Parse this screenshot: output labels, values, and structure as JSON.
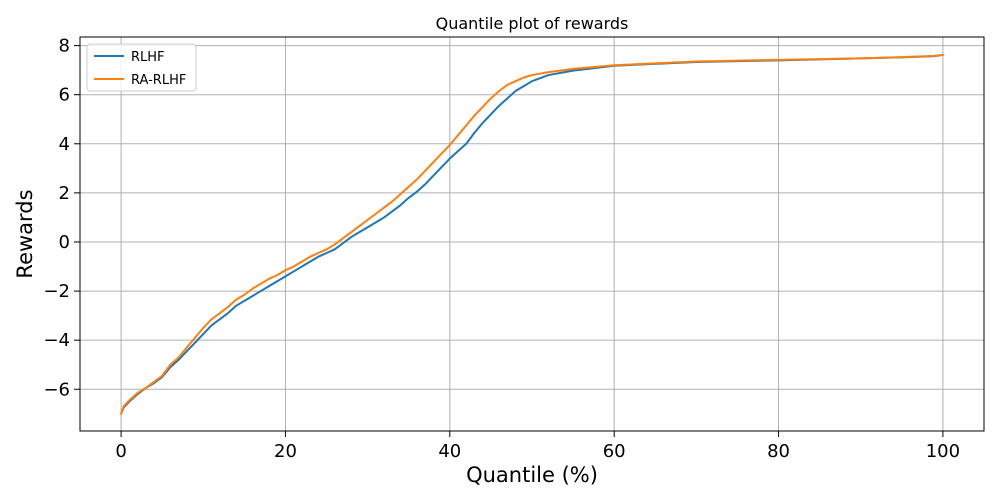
{
  "chart_data": {
    "type": "line",
    "title": "Quantile plot of rewards",
    "xlabel": "Quantile (%)",
    "ylabel": "Rewards",
    "xlim": [
      -5,
      105
    ],
    "ylim": [
      -7.7,
      8.35
    ],
    "xticks": [
      0,
      20,
      40,
      60,
      80,
      100
    ],
    "xtick_labels": [
      "0",
      "20",
      "40",
      "60",
      "80",
      "100"
    ],
    "yticks": [
      -6,
      -4,
      -2,
      0,
      2,
      4,
      6,
      8
    ],
    "ytick_labels": [
      "−6",
      "−4",
      "−2",
      "0",
      "2",
      "4",
      "6",
      "8"
    ],
    "grid": true,
    "legend_position": "top-left",
    "series": [
      {
        "name": "RLHF",
        "color": "#1f77b4",
        "x": [
          0,
          0.3,
          1,
          2,
          3,
          4,
          5,
          6,
          7,
          8,
          9,
          10,
          11,
          12,
          13,
          14,
          15,
          16,
          17,
          18,
          19,
          20,
          21,
          22,
          23,
          24,
          25,
          26,
          27,
          28,
          29,
          30,
          31,
          32,
          33,
          34,
          35,
          36,
          37,
          38,
          39,
          40,
          41,
          42,
          43,
          44,
          45,
          46,
          47,
          48,
          49,
          50,
          52,
          55,
          60,
          70,
          80,
          90,
          95,
          99,
          100
        ],
        "y": [
          -7.0,
          -6.75,
          -6.5,
          -6.2,
          -5.95,
          -5.75,
          -5.5,
          -5.1,
          -4.8,
          -4.45,
          -4.1,
          -3.75,
          -3.4,
          -3.15,
          -2.9,
          -2.6,
          -2.4,
          -2.2,
          -2.0,
          -1.8,
          -1.6,
          -1.4,
          -1.2,
          -1.0,
          -0.8,
          -0.6,
          -0.45,
          -0.3,
          -0.05,
          0.2,
          0.4,
          0.6,
          0.8,
          1.0,
          1.25,
          1.5,
          1.8,
          2.05,
          2.35,
          2.7,
          3.05,
          3.4,
          3.7,
          4.0,
          4.45,
          4.85,
          5.2,
          5.55,
          5.85,
          6.15,
          6.35,
          6.55,
          6.8,
          6.98,
          7.18,
          7.33,
          7.4,
          7.48,
          7.52,
          7.57,
          7.62
        ]
      },
      {
        "name": "RA-RLHF",
        "color": "#ff7f0e",
        "x": [
          0,
          0.3,
          1,
          2,
          3,
          4,
          5,
          6,
          7,
          8,
          9,
          10,
          11,
          12,
          13,
          14,
          15,
          16,
          17,
          18,
          19,
          20,
          21,
          22,
          23,
          24,
          25,
          26,
          27,
          28,
          29,
          30,
          31,
          32,
          33,
          34,
          35,
          36,
          37,
          38,
          39,
          40,
          41,
          42,
          43,
          44,
          45,
          46,
          47,
          48,
          49,
          50,
          52,
          55,
          60,
          70,
          80,
          90,
          95,
          99,
          100
        ],
        "y": [
          -7.0,
          -6.7,
          -6.45,
          -6.15,
          -5.95,
          -5.7,
          -5.45,
          -5.0,
          -4.7,
          -4.3,
          -3.9,
          -3.5,
          -3.15,
          -2.9,
          -2.65,
          -2.35,
          -2.15,
          -1.9,
          -1.7,
          -1.5,
          -1.35,
          -1.15,
          -1.0,
          -0.8,
          -0.6,
          -0.45,
          -0.3,
          -0.1,
          0.15,
          0.4,
          0.65,
          0.9,
          1.15,
          1.4,
          1.65,
          1.95,
          2.25,
          2.55,
          2.9,
          3.25,
          3.6,
          3.95,
          4.35,
          4.75,
          5.15,
          5.5,
          5.85,
          6.15,
          6.4,
          6.55,
          6.7,
          6.8,
          6.92,
          7.05,
          7.2,
          7.35,
          7.42,
          7.48,
          7.53,
          7.58,
          7.62
        ]
      }
    ]
  }
}
